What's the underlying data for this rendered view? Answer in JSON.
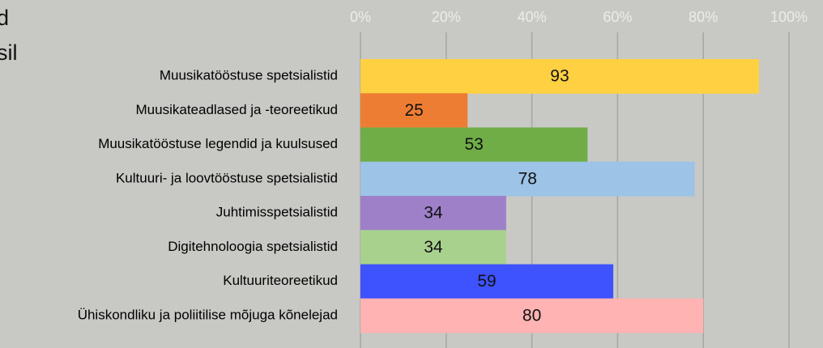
{
  "chart_data": {
    "type": "bar",
    "orientation": "horizontal",
    "title_lines": [
      "d",
      "sil"
    ],
    "categories": [
      "Muusikatööstuse spetsialistid",
      "Muusikateadlased ja -teoreetikud",
      "Muusikatööstuse legendid ja kuulsused",
      "Kultuuri- ja loovtööstuse spetsialistid",
      "Juhtimisspetsialistid",
      "Digitehnoloogia spetsialistid",
      "Kultuuriteoreetikud",
      "Ühiskondliku ja poliitilise mõjuga kõnelejad"
    ],
    "values": [
      93,
      25,
      53,
      78,
      34,
      34,
      59,
      80
    ],
    "colors": [
      "#ffd142",
      "#ee7d34",
      "#70ad47",
      "#9dc3e6",
      "#9e80c8",
      "#a9d18e",
      "#3e52fe",
      "#ffb3b3"
    ],
    "xlim": [
      0,
      100
    ],
    "xticks": [
      {
        "value": 0,
        "label": "0%"
      },
      {
        "value": 20,
        "label": "20%"
      },
      {
        "value": 40,
        "label": "40%"
      },
      {
        "value": 60,
        "label": "60%"
      },
      {
        "value": 80,
        "label": "80%"
      },
      {
        "value": 100,
        "label": "100%"
      }
    ],
    "grid": true
  }
}
